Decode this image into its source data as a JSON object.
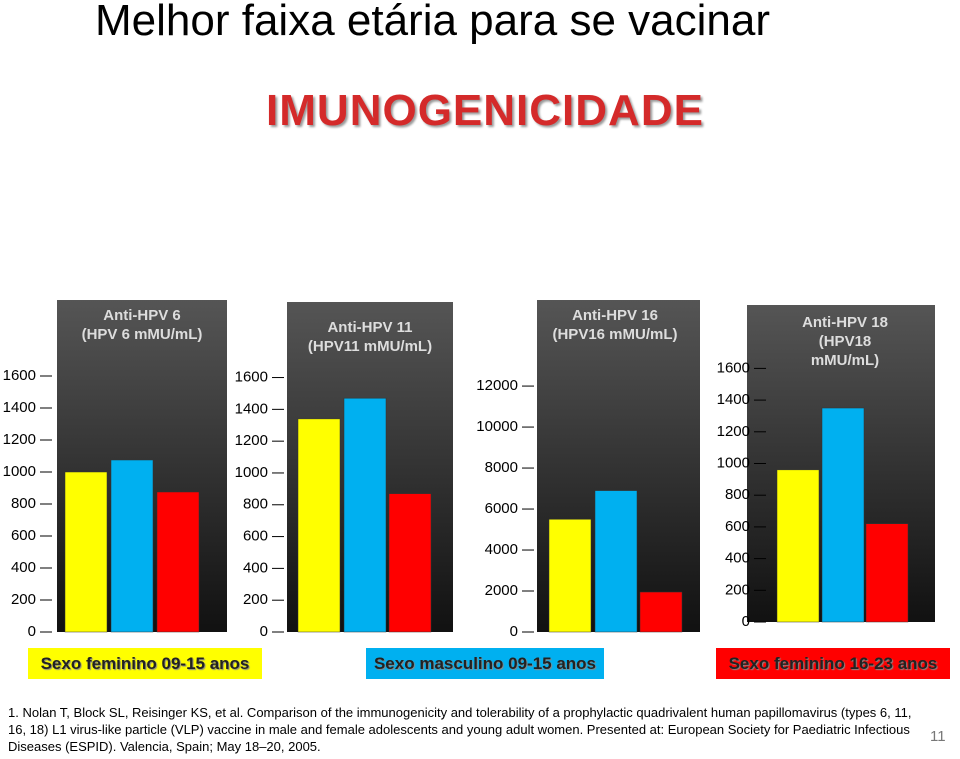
{
  "slide": {
    "title": "Melhor faixa etária para se vacinar",
    "subtitle": "IMUNOGENICIDADE",
    "reference": "1. Nolan T, Block SL, Reisinger KS, et al. Comparison of the immunogenicity and tolerability of a prophylactic quadrivalent human papillomavirus (types 6, 11, 16, 18) L1 virus-like particle (VLP) vaccine in male and female adolescents and young adult women. Presented at: European Society for Paediatric Infectious Diseases (ESPID). Valencia, Spain; May 18–20, 2005.",
    "page_number": "11"
  },
  "legend": [
    {
      "name": "Sexo feminino 09-15 anos",
      "color": "#ffff00"
    },
    {
      "name": "Sexo masculino 09-15 anos",
      "color": "#00b0f0"
    },
    {
      "name": "Sexo feminino 16-23 anos",
      "color": "#ff0000"
    }
  ],
  "chart_data": [
    {
      "type": "bar",
      "title": "Anti-HPV 6\n(HPV 6 mMU/mL)",
      "values": [
        1000,
        1075,
        875
      ],
      "ylim": [
        0,
        2075
      ],
      "yticks": [
        0,
        200,
        400,
        600,
        800,
        1000,
        1200,
        1400,
        1600
      ]
    },
    {
      "type": "bar",
      "title": "Anti-HPV 11\n(HPV11 mMU/mL)",
      "values": [
        1340,
        1470,
        870
      ],
      "ylim": [
        0,
        2075
      ],
      "yticks": [
        0,
        200,
        400,
        600,
        800,
        1000,
        1200,
        1400,
        1600
      ]
    },
    {
      "type": "bar",
      "title": "Anti-HPV 16\n(HPV16 mMU/mL)",
      "values": [
        5500,
        6900,
        1950
      ],
      "ylim": [
        0,
        16200
      ],
      "yticks": [
        0,
        2000,
        4000,
        6000,
        8000,
        10000,
        12000
      ]
    },
    {
      "type": "bar",
      "title": "Anti-HPV 18\n(HPV18 mMU/mL)",
      "values": [
        960,
        1350,
        620
      ],
      "ylim": [
        0,
        2000
      ],
      "yticks": [
        0,
        200,
        400,
        600,
        800,
        1000,
        1200,
        1400,
        1600
      ]
    }
  ]
}
